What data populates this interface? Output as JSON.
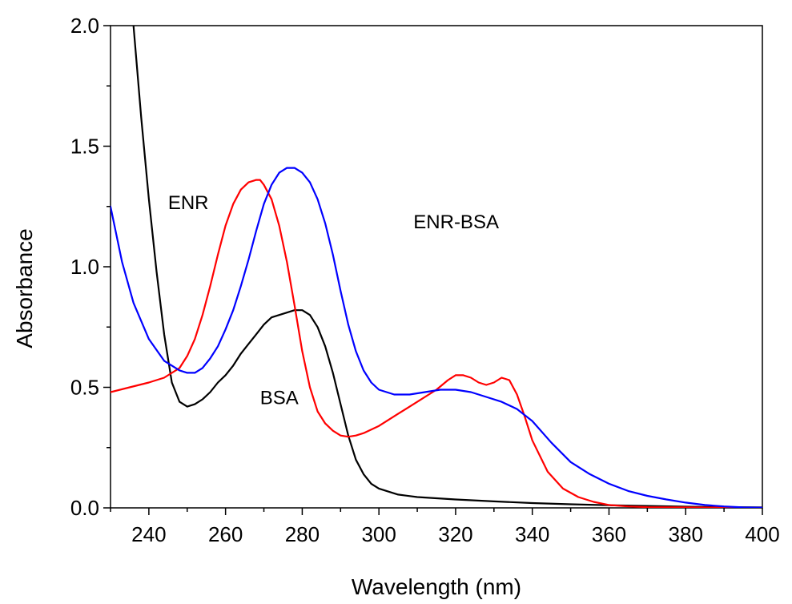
{
  "chart_data": {
    "type": "line",
    "title": "",
    "xlabel": "Wavelength (nm)",
    "ylabel": "Absorbance",
    "xlim": [
      230,
      400
    ],
    "ylim": [
      0,
      2.0
    ],
    "x_ticks": [
      240,
      260,
      280,
      300,
      320,
      340,
      360,
      380,
      400
    ],
    "x_tick_labels": [
      "240",
      "260",
      "280",
      "300",
      "320",
      "340",
      "360",
      "380",
      "400"
    ],
    "y_ticks": [
      0,
      0.5,
      1.0,
      1.5,
      2.0
    ],
    "y_tick_labels": [
      "0.0",
      "0.5",
      "1.0",
      "1.5",
      "2.0"
    ],
    "grid": false,
    "legend": "none",
    "series": [
      {
        "name": "BSA",
        "color": "#000000",
        "label_text": "BSA",
        "label_at": [
          269,
          0.43
        ],
        "x": [
          236,
          238,
          240,
          242,
          244,
          246,
          248,
          250,
          252,
          254,
          256,
          258,
          260,
          262,
          264,
          266,
          268,
          270,
          272,
          274,
          276,
          278,
          280,
          282,
          284,
          286,
          288,
          290,
          292,
          294,
          296,
          298,
          300,
          305,
          310,
          320,
          330,
          340,
          350,
          360,
          370,
          380,
          390,
          400
        ],
        "y": [
          2.0,
          1.62,
          1.28,
          0.98,
          0.72,
          0.52,
          0.44,
          0.42,
          0.43,
          0.45,
          0.48,
          0.52,
          0.55,
          0.59,
          0.64,
          0.68,
          0.72,
          0.76,
          0.79,
          0.8,
          0.81,
          0.82,
          0.82,
          0.8,
          0.75,
          0.67,
          0.56,
          0.43,
          0.3,
          0.2,
          0.14,
          0.1,
          0.08,
          0.055,
          0.045,
          0.035,
          0.027,
          0.02,
          0.015,
          0.011,
          0.008,
          0.005,
          0.003,
          0.002
        ]
      },
      {
        "name": "ENR",
        "color": "#ff0000",
        "label_text": "ENR",
        "label_at": [
          245,
          1.24
        ],
        "x": [
          230,
          235,
          240,
          244,
          248,
          250,
          252,
          254,
          256,
          258,
          260,
          262,
          264,
          266,
          268,
          269,
          270,
          272,
          274,
          276,
          278,
          280,
          282,
          284,
          286,
          288,
          290,
          292,
          294,
          296,
          300,
          305,
          310,
          315,
          318,
          320,
          322,
          324,
          326,
          328,
          330,
          332,
          334,
          336,
          338,
          340,
          344,
          348,
          352,
          356,
          360,
          365,
          370,
          380,
          390,
          400
        ],
        "y": [
          0.48,
          0.5,
          0.52,
          0.54,
          0.58,
          0.63,
          0.7,
          0.8,
          0.92,
          1.05,
          1.17,
          1.26,
          1.32,
          1.35,
          1.36,
          1.36,
          1.34,
          1.28,
          1.17,
          1.02,
          0.84,
          0.65,
          0.5,
          0.4,
          0.35,
          0.32,
          0.3,
          0.295,
          0.3,
          0.31,
          0.34,
          0.39,
          0.44,
          0.49,
          0.53,
          0.55,
          0.55,
          0.54,
          0.52,
          0.51,
          0.52,
          0.54,
          0.53,
          0.47,
          0.38,
          0.28,
          0.15,
          0.08,
          0.045,
          0.025,
          0.012,
          0.006,
          0.003,
          0.002,
          0.001,
          0.001
        ]
      },
      {
        "name": "ENR-BSA",
        "color": "#0000ff",
        "label_text": "ENR-BSA",
        "label_at": [
          309,
          1.16
        ],
        "x": [
          230,
          233,
          236,
          240,
          244,
          248,
          250,
          252,
          254,
          256,
          258,
          260,
          262,
          264,
          266,
          268,
          270,
          272,
          274,
          276,
          278,
          280,
          282,
          284,
          286,
          288,
          290,
          292,
          294,
          296,
          298,
          300,
          304,
          308,
          312,
          316,
          320,
          324,
          328,
          332,
          336,
          340,
          345,
          350,
          355,
          360,
          365,
          370,
          375,
          380,
          385,
          390,
          395,
          400
        ],
        "y": [
          1.25,
          1.02,
          0.85,
          0.7,
          0.61,
          0.57,
          0.56,
          0.56,
          0.58,
          0.62,
          0.67,
          0.74,
          0.82,
          0.92,
          1.03,
          1.15,
          1.26,
          1.34,
          1.39,
          1.41,
          1.41,
          1.39,
          1.35,
          1.28,
          1.18,
          1.05,
          0.9,
          0.76,
          0.65,
          0.57,
          0.52,
          0.49,
          0.47,
          0.47,
          0.48,
          0.49,
          0.49,
          0.48,
          0.46,
          0.44,
          0.41,
          0.36,
          0.27,
          0.19,
          0.14,
          0.1,
          0.07,
          0.05,
          0.035,
          0.022,
          0.012,
          0.006,
          0.002,
          0.001
        ]
      }
    ]
  }
}
